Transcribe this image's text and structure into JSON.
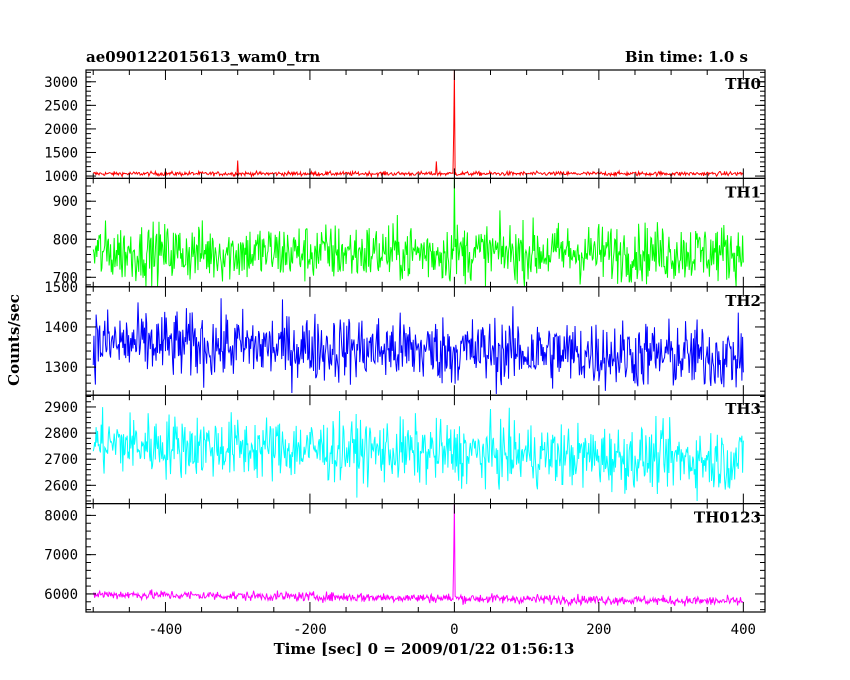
{
  "header": {
    "title": "ae090122015613_wam0_trn",
    "bin_time": "Bin time: 1.0 s"
  },
  "chart_data": {
    "type": "line",
    "xlabel": "Time [sec] 0 = 2009/01/22 01:56:13",
    "ylabel": "Counts/sec",
    "xlim": [
      -510,
      430
    ],
    "xticks": [
      -400,
      -200,
      0,
      200,
      400
    ],
    "x_start": -500,
    "x_end": 400,
    "x_step": 1,
    "panels": [
      {
        "name": "TH0",
        "color": "#ff0000",
        "ylim": [
          950,
          3250
        ],
        "yticks": [
          1000,
          1500,
          2000,
          2500,
          3000
        ],
        "baseline": 1050,
        "noise": 22,
        "trend": 0,
        "spikes": [
          {
            "x": 0,
            "y": 3250
          },
          {
            "x": -1,
            "y": 1900
          },
          {
            "x": -300,
            "y": 1330
          },
          {
            "x": -25,
            "y": 1310
          }
        ]
      },
      {
        "name": "TH1",
        "color": "#00ff00",
        "ylim": [
          675,
          960
        ],
        "yticks": [
          700,
          800,
          900
        ],
        "baseline": 765,
        "noise": 38,
        "trend": 0,
        "spikes": [
          {
            "x": 0,
            "y": 960
          }
        ]
      },
      {
        "name": "TH2",
        "color": "#0000ff",
        "ylim": [
          1230,
          1500
        ],
        "yticks": [
          1300,
          1400,
          1500
        ],
        "baseline": 1360,
        "noise": 42,
        "trend": -35,
        "spikes": []
      },
      {
        "name": "TH3",
        "color": "#00ffff",
        "ylim": [
          2530,
          2945
        ],
        "yticks": [
          2600,
          2700,
          2800,
          2900
        ],
        "baseline": 2760,
        "noise": 60,
        "trend": -65,
        "spikes": []
      },
      {
        "name": "TH0123",
        "color": "#ff00ff",
        "ylim": [
          5540,
          8300
        ],
        "yticks": [
          6000,
          7000,
          8000
        ],
        "baseline": 5990,
        "noise": 60,
        "trend": -180,
        "spikes": [
          {
            "x": 0,
            "y": 8300
          },
          {
            "x": -1,
            "y": 6900
          }
        ]
      }
    ]
  }
}
